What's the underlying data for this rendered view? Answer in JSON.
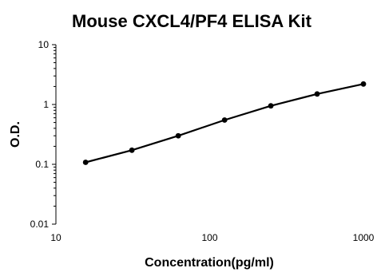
{
  "chart_data": {
    "type": "line",
    "title": "Mouse CXCL4/PF4 ELISA Kit",
    "xlabel": "Concentration(pg/ml)",
    "ylabel": "O.D.",
    "x_scale": "log",
    "y_scale": "log",
    "xlim": [
      10,
      1000
    ],
    "ylim": [
      0.01,
      10
    ],
    "x_ticks": [
      10,
      100,
      1000
    ],
    "x_tick_labels": [
      "10",
      "100",
      "1000"
    ],
    "y_ticks": [
      0.01,
      0.1,
      1,
      10
    ],
    "y_tick_labels": [
      "0.01",
      "0.1",
      "1",
      "10"
    ],
    "grid": false,
    "legend": "none",
    "series": [
      {
        "x": [
          15.6,
          31.2,
          62.5,
          125,
          250,
          500,
          1000
        ],
        "y": [
          0.108,
          0.172,
          0.3,
          0.55,
          0.95,
          1.5,
          2.2
        ]
      }
    ],
    "colors": {
      "line": "#000000",
      "marker": "#000000"
    }
  }
}
